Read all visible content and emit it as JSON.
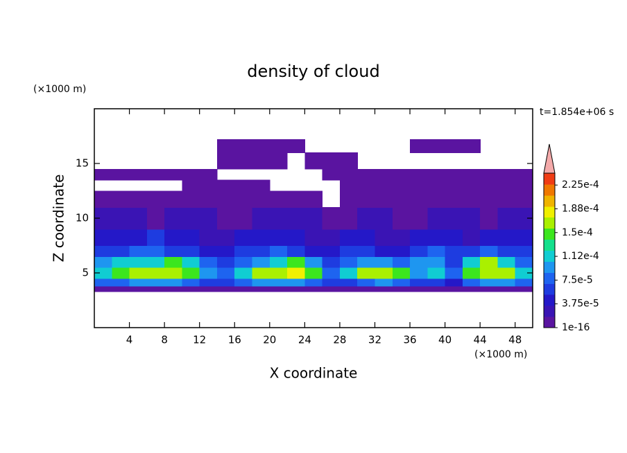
{
  "chart_data": {
    "type": "contour",
    "title": "density of cloud",
    "xlabel": "X coordinate",
    "ylabel": "Z coordinate",
    "xunit": "(×1000 m)",
    "yunit": "(×1000 m)",
    "annotation": "t=1.854e+06 s",
    "xlim": [
      0,
      50
    ],
    "ylim": [
      0,
      20
    ],
    "xticks": [
      4,
      8,
      12,
      16,
      20,
      24,
      28,
      32,
      36,
      40,
      44,
      48
    ],
    "yticks": [
      5,
      10,
      15
    ],
    "x_edges": [
      0,
      2,
      4,
      6,
      8,
      10,
      12,
      14,
      16,
      18,
      20,
      22,
      24,
      26,
      28,
      30,
      32,
      34,
      36,
      38,
      40,
      42,
      44,
      46,
      48,
      50
    ],
    "z_edges": [
      3.3,
      3.8,
      4.5,
      5.5,
      6.5,
      7.5,
      9,
      11,
      12.5,
      13.5,
      14.5,
      16,
      17.2
    ],
    "values": [
      [
        1e-05,
        1e-05,
        1e-05,
        1e-05,
        1e-05,
        1e-05,
        1e-05,
        1e-05,
        1e-05,
        1e-05,
        1e-05,
        1e-05,
        1e-05,
        1e-05,
        1e-05,
        1e-05,
        1e-05,
        1e-05,
        1e-05,
        1e-05,
        1e-05,
        1e-05,
        1e-05,
        1e-05,
        1e-05
      ],
      [
        8e-05,
        8e-05,
        0.0001,
        0.0001,
        0.0001,
        8e-05,
        6.5e-05,
        6.5e-05,
        8e-05,
        0.0001,
        0.0001,
        0.0001,
        8e-05,
        6.5e-05,
        6.5e-05,
        8e-05,
        0.0001,
        8e-05,
        6.5e-05,
        6.5e-05,
        4.5e-05,
        8e-05,
        0.0001,
        0.0001,
        8e-05
      ],
      [
        0.00012,
        0.00014,
        0.00016,
        0.00016,
        0.00016,
        0.00014,
        0.0001,
        8e-05,
        0.00012,
        0.00016,
        0.00016,
        0.00018,
        0.00014,
        8e-05,
        0.00012,
        0.00016,
        0.00016,
        0.00014,
        0.0001,
        0.00012,
        8e-05,
        0.00014,
        0.00016,
        0.00016,
        0.00012
      ],
      [
        0.0001,
        0.00012,
        0.00012,
        0.00012,
        0.00014,
        0.00012,
        8e-05,
        6.5e-05,
        8e-05,
        0.0001,
        0.00012,
        0.00014,
        0.0001,
        6.5e-05,
        8e-05,
        0.0001,
        0.0001,
        8e-05,
        0.0001,
        0.0001,
        6.5e-05,
        0.00012,
        0.00016,
        0.00012,
        8e-05
      ],
      [
        6.5e-05,
        6.5e-05,
        8e-05,
        8e-05,
        6.5e-05,
        6.5e-05,
        4.5e-05,
        4.5e-05,
        6.5e-05,
        6.5e-05,
        8e-05,
        6.5e-05,
        4.5e-05,
        4.5e-05,
        6.5e-05,
        6.5e-05,
        4.5e-05,
        4.5e-05,
        6.5e-05,
        8e-05,
        6.5e-05,
        6.5e-05,
        8e-05,
        6.5e-05,
        6.5e-05
      ],
      [
        4.5e-05,
        4.5e-05,
        4.5e-05,
        6.5e-05,
        4.5e-05,
        4.5e-05,
        2.5e-05,
        2.5e-05,
        4.5e-05,
        4.5e-05,
        4.5e-05,
        4.5e-05,
        2.5e-05,
        2.5e-05,
        4.5e-05,
        4.5e-05,
        2.5e-05,
        2.5e-05,
        4.5e-05,
        4.5e-05,
        4.5e-05,
        2.5e-05,
        4.5e-05,
        4.5e-05,
        4.5e-05
      ],
      [
        2.5e-05,
        2.5e-05,
        2.5e-05,
        1e-05,
        2.5e-05,
        2.5e-05,
        2.5e-05,
        1e-05,
        1e-05,
        2.5e-05,
        2.5e-05,
        2.5e-05,
        2.5e-05,
        1e-05,
        1e-05,
        2.5e-05,
        2.5e-05,
        1e-05,
        1e-05,
        2.5e-05,
        2.5e-05,
        2.5e-05,
        1e-05,
        2.5e-05,
        2.5e-05
      ],
      [
        1e-05,
        1e-05,
        1e-05,
        1e-05,
        1e-05,
        1e-05,
        1e-05,
        1e-05,
        1e-05,
        1e-05,
        1e-05,
        1e-05,
        1e-05,
        null,
        1e-05,
        1e-05,
        1e-05,
        1e-05,
        1e-05,
        1e-05,
        1e-05,
        1e-05,
        1e-05,
        1e-05,
        1e-05
      ],
      [
        null,
        null,
        null,
        null,
        null,
        1e-05,
        1e-05,
        1e-05,
        1e-05,
        1e-05,
        null,
        null,
        null,
        null,
        1e-05,
        1e-05,
        1e-05,
        1e-05,
        1e-05,
        1e-05,
        1e-05,
        1e-05,
        1e-05,
        1e-05,
        1e-05
      ],
      [
        1e-05,
        1e-05,
        1e-05,
        1e-05,
        1e-05,
        1e-05,
        1e-05,
        null,
        null,
        null,
        null,
        null,
        null,
        1e-05,
        1e-05,
        1e-05,
        1e-05,
        1e-05,
        1e-05,
        1e-05,
        1e-05,
        1e-05,
        1e-05,
        1e-05,
        1e-05
      ],
      [
        null,
        null,
        null,
        null,
        null,
        null,
        null,
        1e-05,
        1e-05,
        1e-05,
        1e-05,
        null,
        1e-05,
        1e-05,
        1e-05,
        null,
        null,
        null,
        null,
        null,
        null,
        null,
        null,
        null,
        null
      ],
      [
        null,
        null,
        null,
        null,
        null,
        null,
        null,
        1e-05,
        1e-05,
        1e-05,
        1e-05,
        1e-05,
        null,
        null,
        null,
        null,
        null,
        null,
        1e-05,
        1e-05,
        1e-05,
        1e-05,
        null,
        null,
        null
      ]
    ],
    "colorbar": {
      "clim": [
        1e-16,
        0.00024375
      ],
      "colors": [
        "#5a14a0",
        "#3a14b4",
        "#2418c8",
        "#1e3ce0",
        "#1e64f0",
        "#1e96f0",
        "#10cdd2",
        "#14e08c",
        "#3ce61e",
        "#aaf000",
        "#f0f000",
        "#f0b400",
        "#f07800",
        "#f03c14"
      ],
      "extend_color": "#f4aaaa",
      "ticks": [
        1e-16,
        {
          "value": 3.75e-05,
          "label": "3.75e-5"
        },
        {
          "value": 7.5e-05,
          "label": "7.5e-5"
        },
        {
          "value": 0.0001125,
          "label": "1.12e-4"
        },
        {
          "value": 0.00015,
          "label": "1.5e-4"
        },
        {
          "value": 0.0001875,
          "label": "1.88e-4"
        },
        {
          "value": 0.000225,
          "label": "2.25e-4"
        }
      ]
    }
  }
}
